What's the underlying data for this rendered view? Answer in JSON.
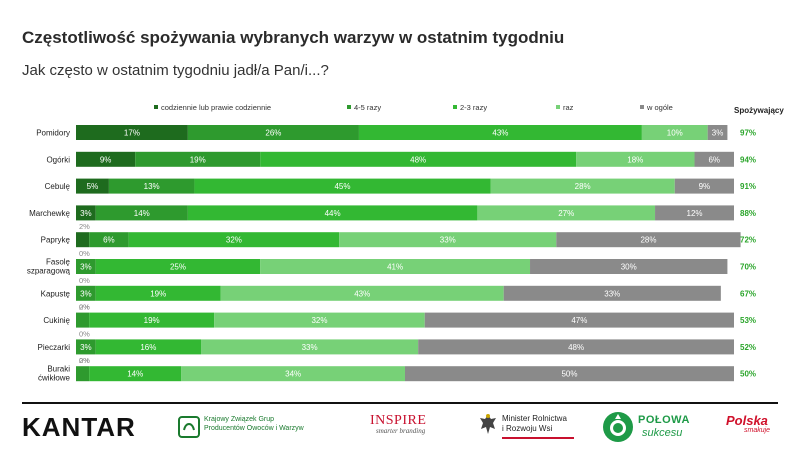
{
  "title": "Częstotliwość spożywania wybranych warzyw w ostatnim tygodniu",
  "subtitle": "Jak często w ostatnim tygodniu jadł/a Pan/i...?",
  "chart_data": {
    "type": "bar",
    "orientation": "horizontal",
    "stacked": true,
    "xlim": [
      0,
      100
    ],
    "grid": false,
    "legend_position": "top",
    "extra_column_header": "Spożywający",
    "categories": [
      [
        "Pomidory"
      ],
      [
        "Ogórki"
      ],
      [
        "Cebulę"
      ],
      [
        "Marchewkę"
      ],
      [
        "Paprykę"
      ],
      [
        "Fasolę",
        "szparagową"
      ],
      [
        "Kapustę"
      ],
      [
        "Cukinię"
      ],
      [
        "Pieczarki"
      ],
      [
        "Buraki",
        "ćwikłowe"
      ]
    ],
    "series": [
      {
        "name": "codziennie lub prawie codziennie",
        "color": "#1e6b1e",
        "values": [
          17,
          9,
          5,
          3,
          2,
          0,
          0,
          0,
          0,
          0
        ]
      },
      {
        "name": "4-5 razy",
        "color": "#2e9a2e",
        "values": [
          26,
          19,
          13,
          14,
          6,
          3,
          3,
          2,
          3,
          2
        ]
      },
      {
        "name": "2-3 razy",
        "color": "#33b833",
        "values": [
          43,
          48,
          45,
          44,
          32,
          25,
          19,
          19,
          16,
          14
        ]
      },
      {
        "name": "raz",
        "color": "#77d177",
        "values": [
          10,
          18,
          28,
          27,
          33,
          41,
          43,
          32,
          33,
          34
        ]
      },
      {
        "name": "w ogóle",
        "color": "#8a8a8a",
        "values": [
          3,
          6,
          9,
          12,
          28,
          30,
          33,
          47,
          48,
          50
        ]
      }
    ],
    "consuming": [
      "97%",
      "94%",
      "91%",
      "88%",
      "72%",
      "70%",
      "67%",
      "53%",
      "52%",
      "50%"
    ]
  },
  "logos": {
    "kantar": "KANTAR",
    "kzgpow_line1": "Krajowy Związek Grup",
    "kzgpow_line2": "Producentów Owoców i Warzyw",
    "inspire_main": "INSPIRE",
    "inspire_sub": "smarter branding",
    "minister_line1": "Minister Rolnictwa",
    "minister_line2": "i Rozwoju Wsi",
    "polowa_main": "POŁOWA",
    "polowa_sub": "sukcesu",
    "polska_main": "Polska",
    "polska_sub": "smakuje"
  }
}
